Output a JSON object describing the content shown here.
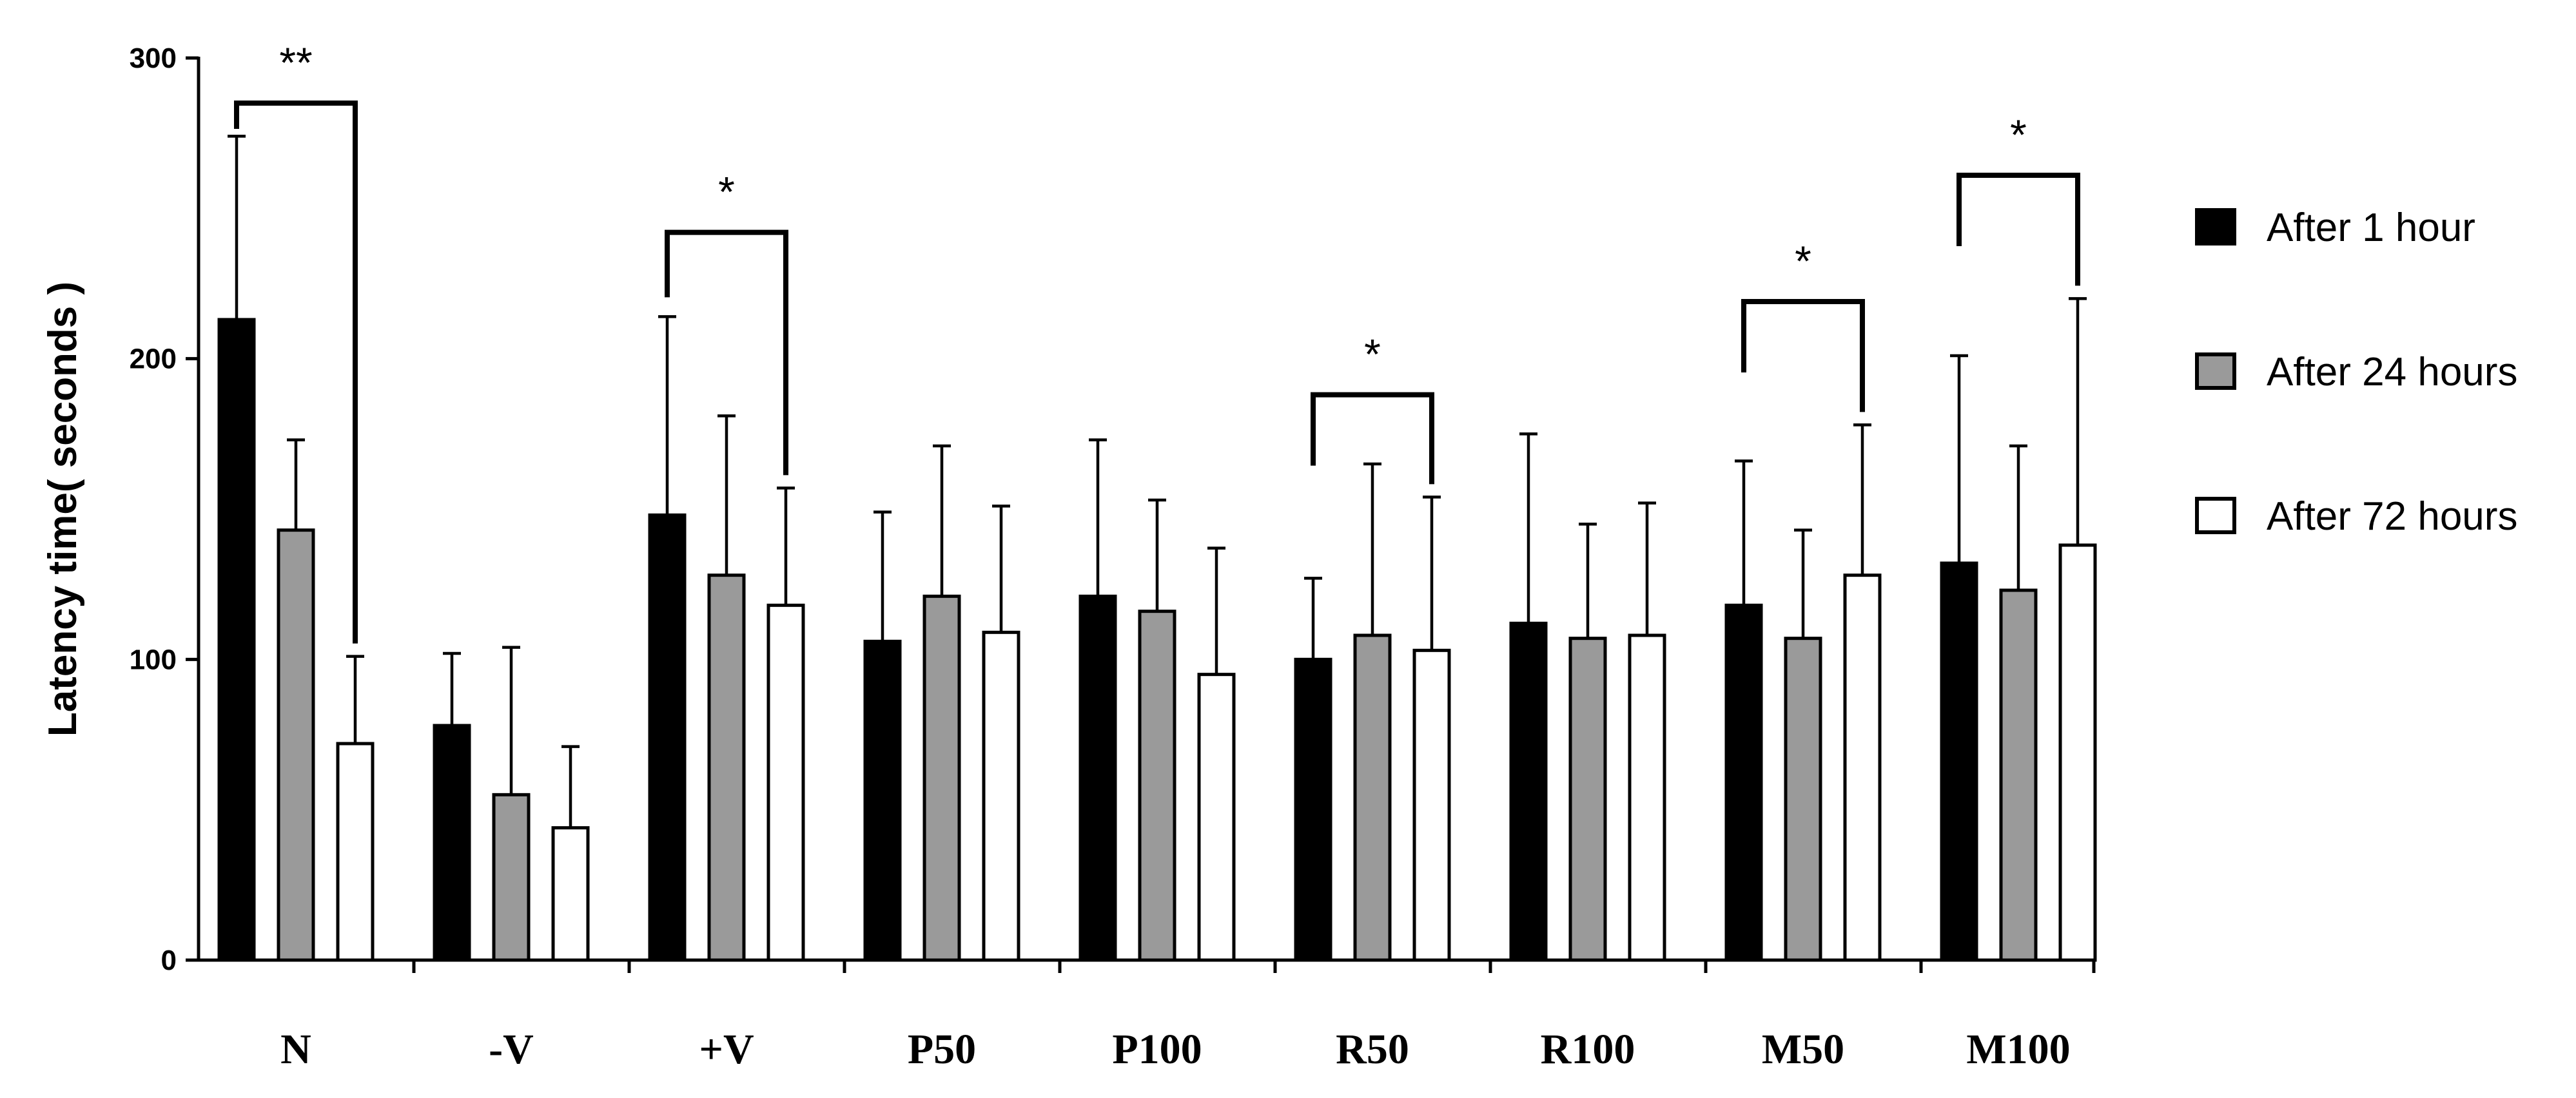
{
  "chart_data": {
    "type": "bar",
    "title": "",
    "xlabel": "",
    "ylabel": "Latency time( seconds )",
    "ylim": [
      0,
      300
    ],
    "yticks": [
      0,
      100,
      200,
      300
    ],
    "grid": false,
    "legend_position": "right",
    "categories": [
      "N",
      "-V",
      "+V",
      "P50",
      "P100",
      "R50",
      "R100",
      "M50",
      "M100"
    ],
    "series": [
      {
        "name": "After 1 hour",
        "color": "#000000",
        "values": [
          213,
          78,
          148,
          106,
          121,
          100,
          112,
          118,
          132
        ],
        "errors": [
          61,
          24,
          66,
          43,
          52,
          27,
          63,
          48,
          69
        ]
      },
      {
        "name": "After 24 hours",
        "color": "#9a9a9a",
        "values": [
          143,
          55,
          128,
          121,
          116,
          108,
          107,
          107,
          123
        ],
        "errors": [
          30,
          49,
          53,
          50,
          37,
          57,
          38,
          36,
          48
        ]
      },
      {
        "name": "After 72 hours",
        "color": "#ffffff",
        "values": [
          72,
          44,
          118,
          109,
          95,
          103,
          108,
          128,
          138
        ],
        "errors": [
          29,
          27,
          39,
          42,
          42,
          51,
          44,
          50,
          82
        ]
      }
    ],
    "significance": [
      {
        "category": "N",
        "label": "**",
        "from_series": 0,
        "to_series": 2,
        "y": 285
      },
      {
        "category": "+V",
        "label": "*",
        "from_series": 0,
        "to_series": 2,
        "y": 242
      },
      {
        "category": "R50",
        "label": "*",
        "from_series": 0,
        "to_series": 2,
        "y": 188
      },
      {
        "category": "M50",
        "label": "*",
        "from_series": 0,
        "to_series": 2,
        "y": 219
      },
      {
        "category": "M100",
        "label": "*",
        "from_series": 0,
        "to_series": 2,
        "y": 261
      }
    ]
  }
}
